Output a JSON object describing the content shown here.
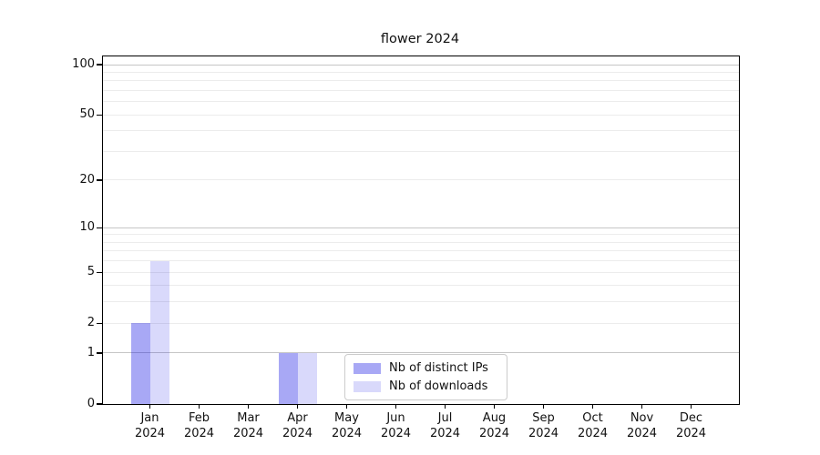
{
  "chart_data": {
    "type": "bar",
    "title": "flower 2024",
    "categories": [
      "Jan 2024",
      "Feb 2024",
      "Mar 2024",
      "Apr 2024",
      "May 2024",
      "Jun 2024",
      "Jul 2024",
      "Aug 2024",
      "Sep 2024",
      "Oct 2024",
      "Nov 2024",
      "Dec 2024"
    ],
    "series": [
      {
        "name": "Nb of distinct IPs",
        "values": [
          2,
          0,
          0,
          1,
          0,
          0,
          0,
          0,
          0,
          0,
          0,
          0
        ],
        "color": "rgba(0,0,225,0.34)"
      },
      {
        "name": "Nb of downloads",
        "values": [
          6,
          0,
          0,
          1,
          0,
          0,
          0,
          0,
          0,
          0,
          0,
          0
        ],
        "color": "rgba(0,0,225,0.15)"
      }
    ],
    "xlabel": "",
    "ylabel": "",
    "yscale": "log1p",
    "ylim": [
      0,
      112
    ],
    "yticks": [
      0,
      1,
      2,
      5,
      10,
      20,
      50,
      100
    ],
    "major_gridlines": [
      1,
      10,
      100
    ],
    "minor_gridlines": [
      2,
      3,
      4,
      5,
      6,
      7,
      8,
      9,
      20,
      30,
      40,
      50,
      60,
      70,
      80,
      90
    ],
    "grid": true,
    "legend_position": "lower center",
    "colors": {
      "major_grid": "#c6c6c6",
      "minor_grid": "#ececec",
      "spine": "#000000"
    }
  }
}
